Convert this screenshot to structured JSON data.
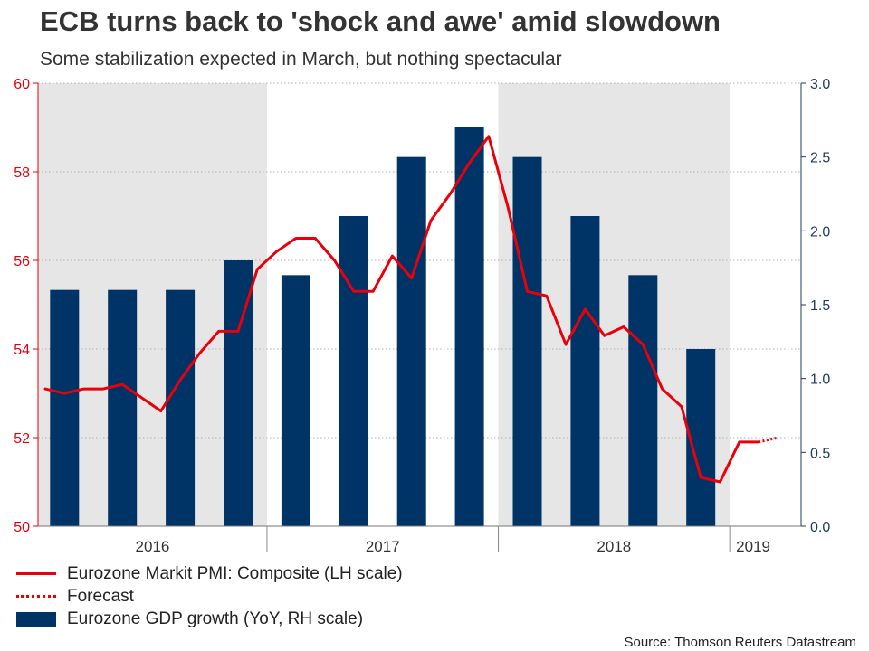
{
  "title": "ECB turns back to 'shock and awe' amid slowdown",
  "subtitle": "Some stabilization expected in March, but nothing spectacular",
  "source": "Source: Thomson Reuters Datastream",
  "legend": {
    "pmi": "Eurozone Markit PMI: Composite (LH scale)",
    "forecast": "Forecast",
    "gdp": "Eurozone GDP growth (YoY, RH scale)"
  },
  "colors": {
    "pmi": "#e8000b",
    "gdp": "#003366",
    "shade": "#e6e6e6",
    "left_axis": "#e8000b",
    "right_axis": "#1f3b5c"
  },
  "chart_data": {
    "type": "bar+line",
    "x_labels": [
      "2016",
      "2017",
      "2018",
      "2019"
    ],
    "shaded_years": [
      "2016",
      "2018"
    ],
    "left_axis": {
      "label": "Eurozone Markit PMI: Composite",
      "ylim": [
        50,
        60
      ],
      "ticks": [
        "50",
        "52",
        "54",
        "56",
        "58",
        "60"
      ]
    },
    "right_axis": {
      "label": "Eurozone GDP growth (YoY)",
      "ylim": [
        0.0,
        3.0
      ],
      "ticks": [
        "0.0",
        "0.5",
        "1.0",
        "1.5",
        "2.0",
        "2.5",
        "3.0"
      ]
    },
    "gdp_series": {
      "name": "Eurozone GDP growth (YoY, RH scale)",
      "periods": [
        "2016 Q1",
        "2016 Q2",
        "2016 Q3",
        "2016 Q4",
        "2017 Q1",
        "2017 Q2",
        "2017 Q3",
        "2017 Q4",
        "2018 Q1",
        "2018 Q2",
        "2018 Q3",
        "2018 Q4"
      ],
      "values": [
        1.6,
        1.6,
        1.6,
        1.8,
        1.7,
        2.1,
        2.5,
        2.7,
        2.5,
        2.1,
        1.7,
        1.2
      ]
    },
    "pmi_series": {
      "name": "Eurozone Markit PMI: Composite (LH scale)",
      "periods": [
        "2016-01",
        "2016-02",
        "2016-03",
        "2016-04",
        "2016-05",
        "2016-06",
        "2016-07",
        "2016-08",
        "2016-09",
        "2016-10",
        "2016-11",
        "2016-12",
        "2017-01",
        "2017-02",
        "2017-03",
        "2017-04",
        "2017-05",
        "2017-06",
        "2017-07",
        "2017-08",
        "2017-09",
        "2017-10",
        "2017-11",
        "2017-12",
        "2018-01",
        "2018-02",
        "2018-03",
        "2018-04",
        "2018-05",
        "2018-06",
        "2018-07",
        "2018-08",
        "2018-09",
        "2018-10",
        "2018-11",
        "2018-12",
        "2019-01",
        "2019-02"
      ],
      "values": [
        53.1,
        53.0,
        53.1,
        53.1,
        53.2,
        52.9,
        52.6,
        53.3,
        53.9,
        54.4,
        54.4,
        55.8,
        56.2,
        56.5,
        56.5,
        56.0,
        55.3,
        55.3,
        56.1,
        55.6,
        56.9,
        57.5,
        58.2,
        58.8,
        57.2,
        55.3,
        55.2,
        54.1,
        54.9,
        54.3,
        54.5,
        54.1,
        53.1,
        52.7,
        51.1,
        51.0,
        51.9,
        51.9
      ]
    },
    "forecast_series": {
      "name": "Forecast",
      "periods": [
        "2019-02",
        "2019-03"
      ],
      "values": [
        51.9,
        52.0
      ]
    }
  }
}
